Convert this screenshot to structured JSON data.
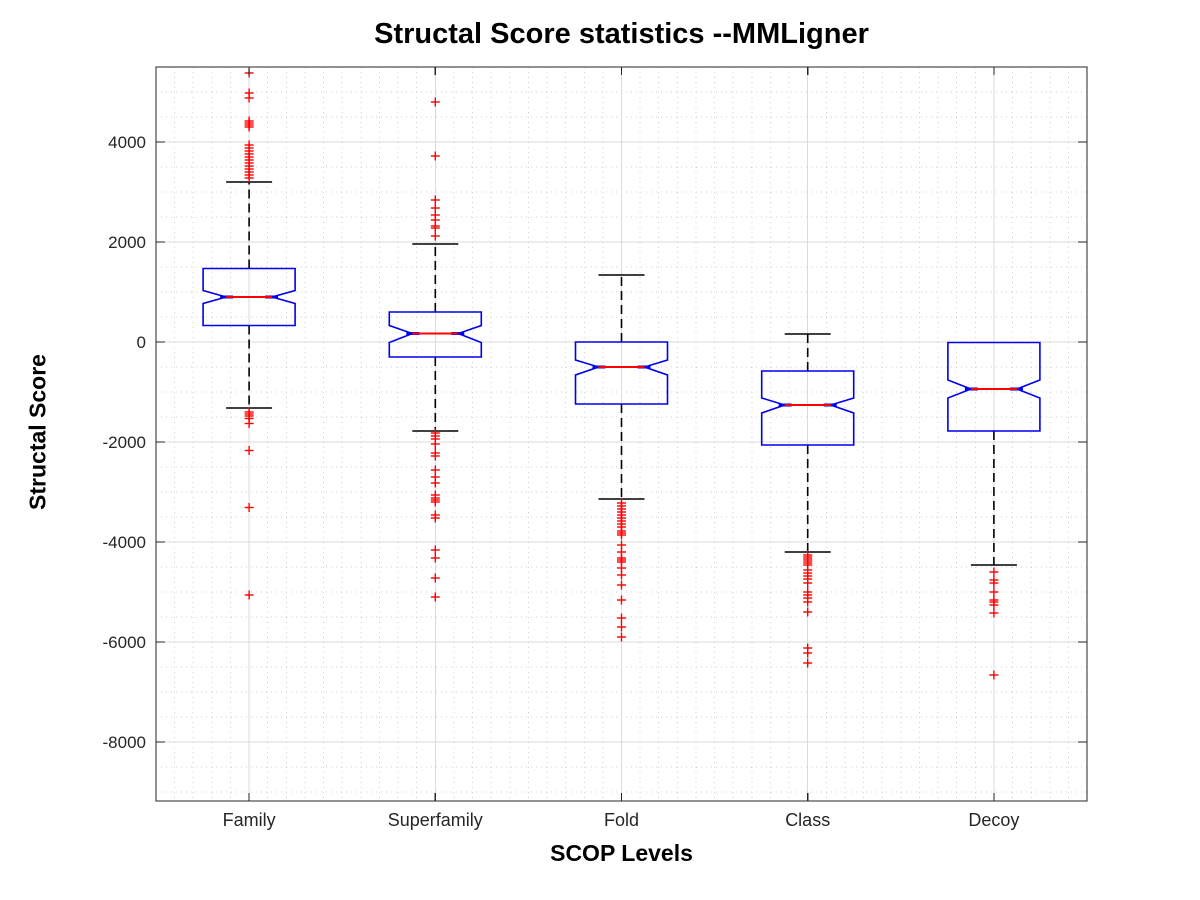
{
  "chart_data": {
    "type": "boxplot",
    "title": "Structal Score statistics --MMLigner",
    "xlabel": "SCOP Levels",
    "ylabel": "Structal Score",
    "categories": [
      "Family",
      "Superfamily",
      "Fold",
      "Class",
      "Decoy"
    ],
    "ylim": [
      -9180,
      5500
    ],
    "yticks": [
      4000,
      2000,
      0,
      -2000,
      -4000,
      -6000,
      -8000
    ],
    "minor_y_step": 500,
    "minor_x_step": 0.1,
    "grid": "major solid, minor dotted, both axes",
    "legend": "none",
    "notched": true,
    "colors": {
      "box": "#0000ee",
      "median": "#ff0000",
      "whisker": "#000000",
      "outlier": "#ff0000",
      "grid_major": "#dbdbdb",
      "grid_minor": "#bdbdbd",
      "frame": "#262626",
      "tick_text": "#262626",
      "title_text": "#000000"
    },
    "series": [
      {
        "name": "Family",
        "whisker_low": -1320,
        "q1": 330,
        "median": 900,
        "q3": 1470,
        "whisker_high": 3200,
        "notch_low": 770,
        "notch_high": 1030,
        "outliers_high": [
          5380,
          4980,
          4880,
          4420,
          4380,
          4340,
          4300,
          3940,
          3880,
          3820,
          3760,
          3700,
          3640,
          3580,
          3520,
          3460,
          3400,
          3340,
          3280
        ],
        "outliers_low": [
          -1400,
          -1440,
          -1480,
          -1530,
          -1630,
          -2170,
          -3310,
          -5060
        ]
      },
      {
        "name": "Superfamily",
        "whisker_low": -1780,
        "q1": -300,
        "median": 170,
        "q3": 600,
        "whisker_high": 1960,
        "notch_low": -10,
        "notch_high": 330,
        "outliers_high": [
          4800,
          3720,
          2840,
          2680,
          2540,
          2440,
          2320,
          2280,
          2120
        ],
        "outliers_low": [
          -1820,
          -1880,
          -1940,
          -2040,
          -2220,
          -2280,
          -2560,
          -2700,
          -2820,
          -3060,
          -3120,
          -3160,
          -3200,
          -3460,
          -3520,
          -4160,
          -4320,
          -4720,
          -5100
        ]
      },
      {
        "name": "Fold",
        "whisker_low": -3140,
        "q1": -1240,
        "median": -500,
        "q3": 0,
        "whisker_high": 1340,
        "notch_low": -660,
        "notch_high": -360,
        "outliers_high": [],
        "outliers_low": [
          -3220,
          -3280,
          -3340,
          -3400,
          -3460,
          -3520,
          -3580,
          -3640,
          -3700,
          -3780,
          -3820,
          -3860,
          -4060,
          -4200,
          -4320,
          -4360,
          -4400,
          -4520,
          -4660,
          -4860,
          -5160,
          -5520,
          -5700,
          -5900
        ]
      },
      {
        "name": "Class",
        "whisker_low": -4200,
        "q1": -2060,
        "median": -1260,
        "q3": -580,
        "whisker_high": 160,
        "notch_low": -1420,
        "notch_high": -1120,
        "outliers_high": [],
        "outliers_low": [
          -4260,
          -4300,
          -4340,
          -4380,
          -4420,
          -4460,
          -4560,
          -4620,
          -4680,
          -4740,
          -4820,
          -5000,
          -5060,
          -5120,
          -5200,
          -5400,
          -6120,
          -6220,
          -6420
        ]
      },
      {
        "name": "Decoy",
        "whisker_low": -4460,
        "q1": -1780,
        "median": -940,
        "q3": -10,
        "whisker_high": -10,
        "notch_low": -1120,
        "notch_high": -760,
        "outliers_high": [],
        "outliers_low": [
          -4600,
          -4760,
          -4820,
          -5000,
          -5160,
          -5200,
          -5260,
          -5420,
          -6660
        ]
      }
    ]
  }
}
